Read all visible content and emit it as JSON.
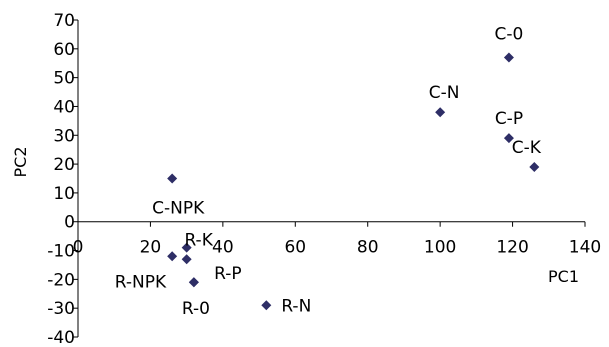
{
  "chart_data": {
    "type": "scatter",
    "xlabel": "PC1",
    "ylabel": "PC2",
    "xlim": [
      0,
      140
    ],
    "ylim": [
      -40,
      70
    ],
    "xticks": [
      0,
      20,
      40,
      60,
      80,
      100,
      120,
      140
    ],
    "yticks": [
      -40,
      -30,
      -20,
      -10,
      0,
      10,
      20,
      30,
      40,
      50,
      60,
      70
    ],
    "grid": false,
    "marker": "diamond",
    "marker_color": "#2e2e66",
    "points": [
      {
        "label": "C-0",
        "x": 119,
        "y": 57
      },
      {
        "label": "C-N",
        "x": 100,
        "y": 38
      },
      {
        "label": "C-P",
        "x": 119,
        "y": 29
      },
      {
        "label": "C-K",
        "x": 126,
        "y": 19
      },
      {
        "label": "C-NPK",
        "x": 26,
        "y": 15
      },
      {
        "label": "R-K",
        "x": 30,
        "y": -9
      },
      {
        "label": "R-NPK",
        "x": 26,
        "y": -12
      },
      {
        "label": "",
        "x": 30,
        "y": -13
      },
      {
        "label": "R-P",
        "x": 32,
        "y": -21
      },
      {
        "label": "R-0",
        "x": 32,
        "y": -21
      },
      {
        "label": "R-N",
        "x": 52,
        "y": -29
      }
    ]
  }
}
